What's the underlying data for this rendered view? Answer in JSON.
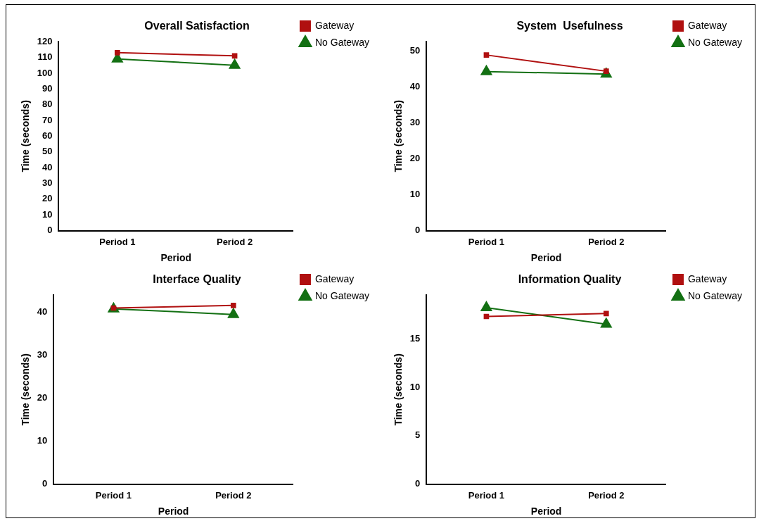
{
  "chart_data": [
    {
      "type": "line",
      "title": "Overall Satisfaction",
      "xlabel": "Period",
      "ylabel": "Time (seconds)",
      "categories": [
        "Period 1",
        "Period 2"
      ],
      "ylim": [
        0,
        120
      ],
      "yticks": [
        0,
        10,
        20,
        30,
        40,
        50,
        60,
        70,
        80,
        90,
        100,
        110,
        120
      ],
      "grid": false,
      "legend": "right",
      "series": [
        {
          "name": "Gateway",
          "color": "#b01010",
          "marker": "square",
          "values": [
            113,
            111
          ]
        },
        {
          "name": "No Gateway",
          "color": "#137013",
          "marker": "triangle",
          "values": [
            109,
            105
          ]
        }
      ]
    },
    {
      "type": "line",
      "title": "System  Usefulness",
      "xlabel": "Period",
      "ylabel": "Time (seconds)",
      "categories": [
        "Period 1",
        "Period 2"
      ],
      "ylim": [
        0,
        52.5
      ],
      "yticks": [
        0,
        10,
        20,
        30,
        40,
        50
      ],
      "grid": false,
      "legend": "right",
      "series": [
        {
          "name": "Gateway",
          "color": "#b01010",
          "marker": "square",
          "values": [
            48.8,
            44.3
          ]
        },
        {
          "name": "No Gateway",
          "color": "#137013",
          "marker": "triangle",
          "values": [
            44.2,
            43.5
          ]
        }
      ]
    },
    {
      "type": "line",
      "title": "Interface Quality",
      "xlabel": "Period",
      "ylabel": "Time (seconds)",
      "categories": [
        "Period 1",
        "Period 2"
      ],
      "ylim": [
        0,
        44
      ],
      "yticks": [
        0,
        10,
        20,
        30,
        40
      ],
      "grid": false,
      "legend": "right",
      "series": [
        {
          "name": "Gateway",
          "color": "#b01010",
          "marker": "square",
          "values": [
            41,
            41.6
          ]
        },
        {
          "name": "No Gateway",
          "color": "#137013",
          "marker": "triangle",
          "values": [
            40.8,
            39.5
          ]
        }
      ]
    },
    {
      "type": "line",
      "title": "Information Quality",
      "xlabel": "Period",
      "ylabel": "Time (seconds)",
      "categories": [
        "Period 1",
        "Period 2"
      ],
      "ylim": [
        0,
        19.5
      ],
      "yticks": [
        0,
        5,
        10,
        15
      ],
      "grid": false,
      "legend": "right",
      "series": [
        {
          "name": "Gateway",
          "color": "#b01010",
          "marker": "square",
          "values": [
            17.3,
            17.6
          ]
        },
        {
          "name": "No Gateway",
          "color": "#137013",
          "marker": "triangle",
          "values": [
            18.2,
            16.5
          ]
        }
      ]
    }
  ]
}
